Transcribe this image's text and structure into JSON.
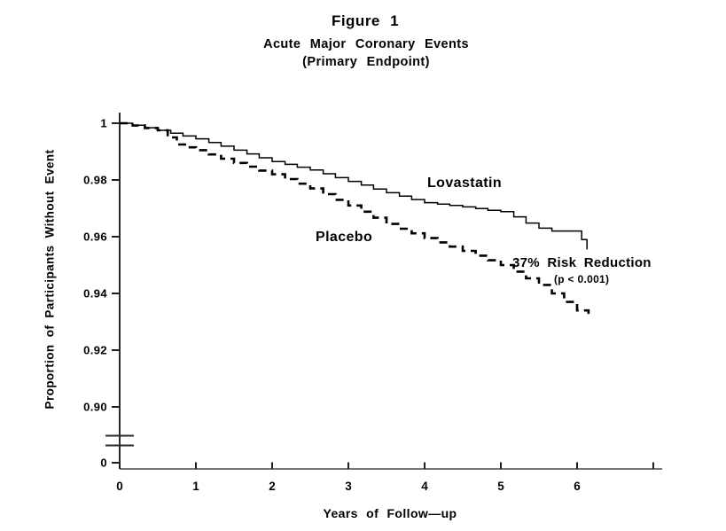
{
  "figure": {
    "title": "Figure 1",
    "subtitle": "Acute Major Coronary Events",
    "subtitle2": "(Primary Endpoint)"
  },
  "labels": {
    "lovastatin": "Lovastatin",
    "placebo": "Placebo",
    "annotation_line1": "37% Risk Reduction",
    "annotation_line2": "(p < 0.001)"
  },
  "colors": {
    "curve": "#000000",
    "y_axis": "#2b2b2b",
    "x_axis": "#787878",
    "tick": "#1f1f1f",
    "background": "#ffffff"
  },
  "chart_data": {
    "type": "line",
    "subtype": "kaplan-meier-step",
    "title": "Figure 1 — Acute Major Coronary Events (Primary Endpoint)",
    "xlabel": "Years of Follow—up",
    "ylabel": "Proportion of Participants Without Event",
    "xlim": [
      0,
      7
    ],
    "ylim_main": [
      0.893,
      1.003
    ],
    "y_axis_break": true,
    "y_zero_tick_label": "0",
    "grid": false,
    "legend_position": "labels-on-curves",
    "x_ticks": [
      0,
      1,
      2,
      3,
      4,
      5,
      6,
      7
    ],
    "x_tick_labels": [
      "0",
      "1",
      "2",
      "3",
      "4",
      "5",
      "6",
      ""
    ],
    "y_ticks": [
      1,
      0.98,
      0.96,
      0.94,
      0.92,
      0.9
    ],
    "y_tick_labels": [
      "1",
      "0.98",
      "0.96",
      "0.94",
      "0.92",
      "0.90"
    ],
    "annotation": {
      "line1": "37% Risk Reduction",
      "line2": "(p < 0.001)",
      "x": 5.15,
      "y": 0.952
    },
    "series": [
      {
        "name": "Lovastatin",
        "style": "solid",
        "x": [
          0,
          0.17,
          0.33,
          0.5,
          0.67,
          0.83,
          1,
          1.17,
          1.33,
          1.5,
          1.67,
          1.83,
          2,
          2.17,
          2.33,
          2.5,
          2.67,
          2.83,
          3,
          3.17,
          3.33,
          3.5,
          3.67,
          3.83,
          4,
          4.17,
          4.33,
          4.5,
          4.67,
          4.83,
          5,
          5.17,
          5.33,
          5.5,
          5.67,
          6.02,
          6.06,
          6.13
        ],
        "y": [
          1,
          0.9993,
          0.9984,
          0.9975,
          0.9965,
          0.9955,
          0.9945,
          0.9932,
          0.9919,
          0.9905,
          0.9892,
          0.9878,
          0.9865,
          0.9855,
          0.9845,
          0.9835,
          0.9822,
          0.9808,
          0.9795,
          0.9782,
          0.9768,
          0.9755,
          0.9743,
          0.9731,
          0.972,
          0.9715,
          0.971,
          0.9705,
          0.9699,
          0.9693,
          0.9688,
          0.967,
          0.9648,
          0.963,
          0.962,
          0.962,
          0.959,
          0.9555
        ]
      },
      {
        "name": "Placebo",
        "style": "dashed",
        "x": [
          0,
          0.17,
          0.33,
          0.5,
          0.63,
          0.75,
          0.88,
          1,
          1.17,
          1.33,
          1.5,
          1.67,
          1.83,
          2,
          2.17,
          2.33,
          2.5,
          2.67,
          2.83,
          3,
          3.17,
          3.33,
          3.5,
          3.67,
          3.83,
          4,
          4.17,
          4.33,
          4.5,
          4.67,
          4.83,
          5,
          5.17,
          5.33,
          5.5,
          5.67,
          5.83,
          6,
          6.15
        ],
        "y": [
          1,
          0.9992,
          0.9983,
          0.9975,
          0.995,
          0.9925,
          0.9915,
          0.9905,
          0.989,
          0.9875,
          0.986,
          0.9847,
          0.9833,
          0.982,
          0.9803,
          0.9787,
          0.977,
          0.975,
          0.973,
          0.971,
          0.9688,
          0.9667,
          0.9645,
          0.9628,
          0.9612,
          0.9595,
          0.958,
          0.9565,
          0.955,
          0.9533,
          0.9517,
          0.95,
          0.9477,
          0.9453,
          0.943,
          0.94,
          0.937,
          0.934,
          0.932
        ]
      }
    ]
  }
}
